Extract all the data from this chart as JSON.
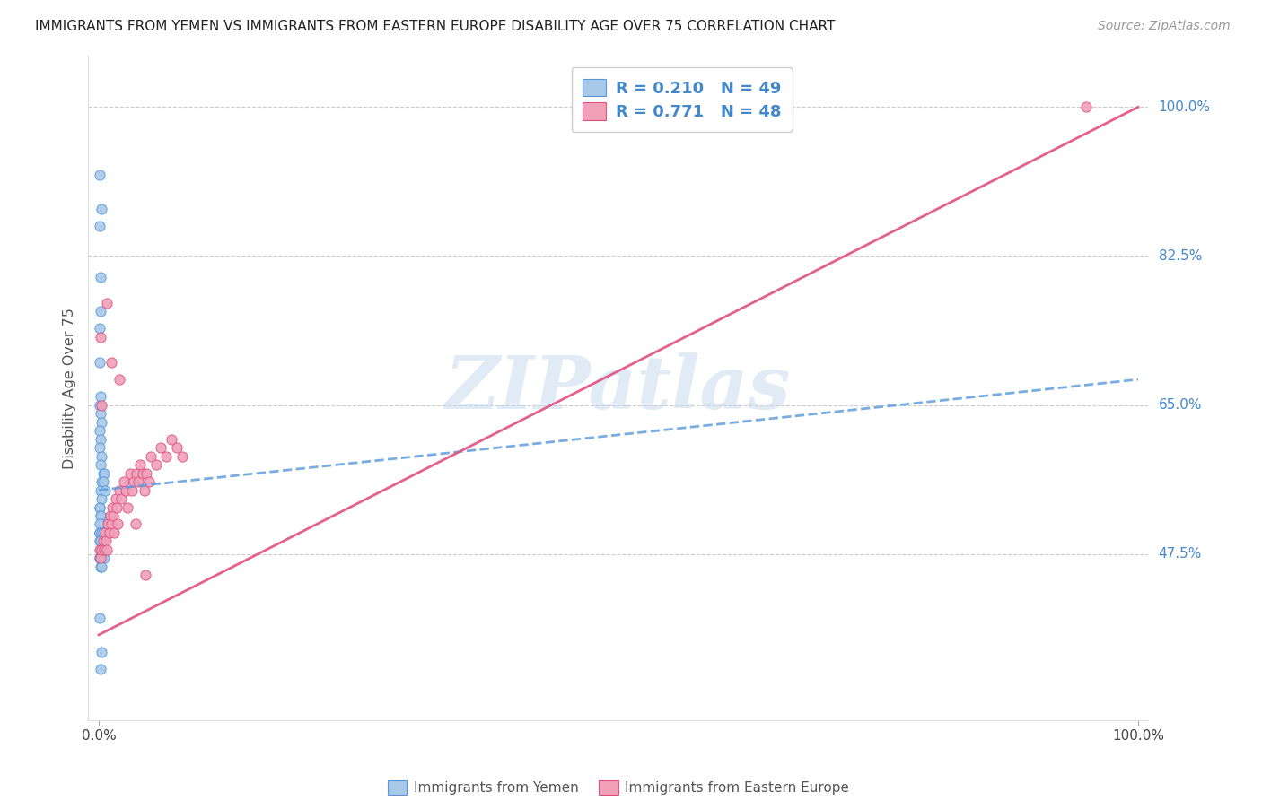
{
  "title": "IMMIGRANTS FROM YEMEN VS IMMIGRANTS FROM EASTERN EUROPE DISABILITY AGE OVER 75 CORRELATION CHART",
  "source": "Source: ZipAtlas.com",
  "ylabel": "Disability Age Over 75",
  "ytick_labels": [
    "100.0%",
    "82.5%",
    "65.0%",
    "47.5%"
  ],
  "ytick_values": [
    1.0,
    0.825,
    0.65,
    0.475
  ],
  "xlim": [
    -0.01,
    1.01
  ],
  "ylim": [
    0.28,
    1.06
  ],
  "color_yemen": "#a8c8e8",
  "color_eastern": "#f0a0b8",
  "color_line_yemen": "#5599dd",
  "color_line_eastern": "#e05080",
  "color_text_blue": "#4488cc",
  "color_grid": "#cccccc",
  "watermark_text": "ZIPatlas",
  "legend_label1": "R = 0.210   N = 49",
  "legend_label2": "R = 0.771   N = 48",
  "bottom_label1": "Immigrants from Yemen",
  "bottom_label2": "Immigrants from Eastern Europe",
  "yemen_x": [
    0.001,
    0.002,
    0.003,
    0.001,
    0.002,
    0.001,
    0.001,
    0.002,
    0.001,
    0.002,
    0.003,
    0.001,
    0.002,
    0.001,
    0.003,
    0.002,
    0.004,
    0.003,
    0.005,
    0.004,
    0.002,
    0.003,
    0.001,
    0.001,
    0.002,
    0.002,
    0.003,
    0.001,
    0.001,
    0.001,
    0.001,
    0.003,
    0.004,
    0.002,
    0.001,
    0.002,
    0.003,
    0.002,
    0.001,
    0.001,
    0.001,
    0.004,
    0.005,
    0.002,
    0.003,
    0.001,
    0.003,
    0.002,
    0.006
  ],
  "yemen_y": [
    0.92,
    0.8,
    0.88,
    0.86,
    0.76,
    0.74,
    0.7,
    0.66,
    0.65,
    0.64,
    0.63,
    0.62,
    0.61,
    0.6,
    0.59,
    0.58,
    0.57,
    0.56,
    0.57,
    0.56,
    0.55,
    0.54,
    0.53,
    0.53,
    0.52,
    0.52,
    0.51,
    0.51,
    0.5,
    0.5,
    0.5,
    0.5,
    0.5,
    0.49,
    0.49,
    0.49,
    0.48,
    0.48,
    0.47,
    0.47,
    0.47,
    0.47,
    0.47,
    0.46,
    0.46,
    0.4,
    0.36,
    0.34,
    0.55
  ],
  "eastern_x": [
    0.001,
    0.002,
    0.003,
    0.004,
    0.005,
    0.006,
    0.007,
    0.008,
    0.009,
    0.01,
    0.011,
    0.012,
    0.013,
    0.014,
    0.015,
    0.016,
    0.017,
    0.018,
    0.02,
    0.022,
    0.024,
    0.026,
    0.028,
    0.03,
    0.032,
    0.034,
    0.036,
    0.038,
    0.04,
    0.042,
    0.044,
    0.046,
    0.048,
    0.05,
    0.055,
    0.06,
    0.065,
    0.07,
    0.075,
    0.08,
    0.002,
    0.003,
    0.008,
    0.012,
    0.02,
    0.035,
    0.045,
    0.95
  ],
  "eastern_y": [
    0.48,
    0.47,
    0.48,
    0.49,
    0.48,
    0.5,
    0.49,
    0.48,
    0.51,
    0.5,
    0.52,
    0.51,
    0.53,
    0.52,
    0.5,
    0.54,
    0.53,
    0.51,
    0.55,
    0.54,
    0.56,
    0.55,
    0.53,
    0.57,
    0.55,
    0.56,
    0.57,
    0.56,
    0.58,
    0.57,
    0.55,
    0.57,
    0.56,
    0.59,
    0.58,
    0.6,
    0.59,
    0.61,
    0.6,
    0.59,
    0.73,
    0.65,
    0.77,
    0.7,
    0.68,
    0.51,
    0.45,
    1.0
  ],
  "line_yemen_x0": 0.0,
  "line_yemen_x1": 1.0,
  "line_yemen_y0": 0.55,
  "line_yemen_y1": 0.68,
  "line_eastern_x0": 0.0,
  "line_eastern_x1": 1.0,
  "line_eastern_y0": 0.38,
  "line_eastern_y1": 1.0
}
